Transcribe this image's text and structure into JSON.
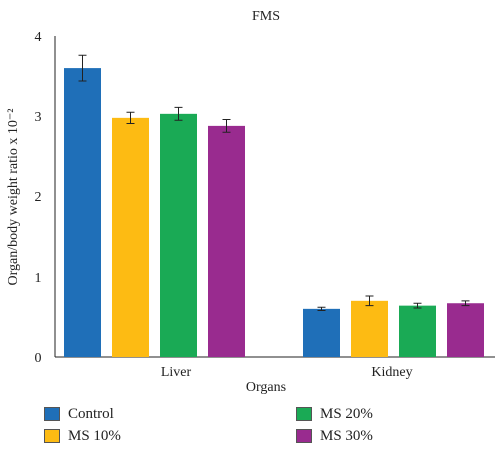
{
  "chart_data": {
    "type": "bar",
    "title": "FMS",
    "xlabel": "Organs",
    "ylabel": "Organ/body weight ratio x 10⁻²",
    "ylim": [
      0,
      4
    ],
    "yticks": [
      "0",
      "1",
      "2",
      "3",
      "4"
    ],
    "categories": [
      "Liver",
      "Kidney"
    ],
    "grid": false,
    "legend_position": "bottom",
    "series": [
      {
        "name": "Control",
        "color": "#1f6fb8",
        "values": [
          3.6,
          0.6
        ],
        "errors": [
          0.16,
          0.02
        ]
      },
      {
        "name": "MS 10%",
        "color": "#fdbb13",
        "values": [
          2.98,
          0.7
        ],
        "errors": [
          0.07,
          0.06
        ]
      },
      {
        "name": "MS 20%",
        "color": "#1aaa55",
        "values": [
          3.03,
          0.64
        ],
        "errors": [
          0.08,
          0.03
        ]
      },
      {
        "name": "MS 30%",
        "color": "#992b8f",
        "values": [
          2.88,
          0.67
        ],
        "errors": [
          0.08,
          0.03
        ]
      }
    ]
  }
}
